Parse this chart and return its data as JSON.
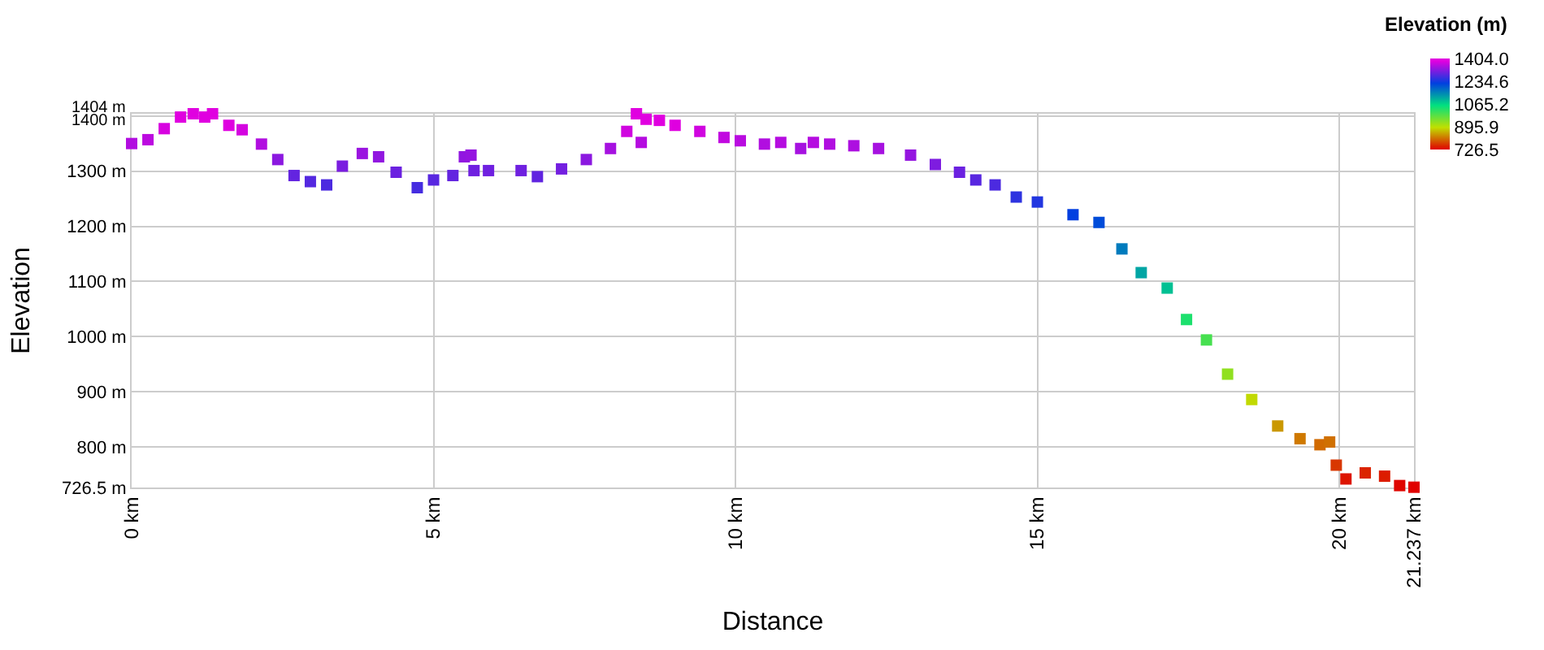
{
  "chart_data": {
    "type": "scatter",
    "xlabel": "Distance",
    "ylabel": "Elevation",
    "clabel": "Elevation (m)",
    "x": [
      0,
      0.27,
      0.54,
      0.81,
      1.02,
      1.21,
      1.34,
      1.61,
      1.83,
      2.15,
      2.42,
      2.69,
      2.96,
      3.23,
      3.49,
      3.82,
      4.09,
      4.38,
      4.73,
      5.0,
      5.32,
      5.51,
      5.62,
      5.67,
      5.91,
      6.45,
      6.72,
      7.12,
      7.53,
      7.93,
      8.2,
      8.36,
      8.44,
      8.52,
      8.74,
      9.0,
      9.41,
      9.81,
      10.08,
      10.48,
      10.75,
      11.08,
      11.29,
      11.56,
      11.96,
      12.37,
      12.9,
      13.31,
      13.71,
      13.98,
      14.3,
      14.65,
      15.0,
      15.59,
      16.02,
      16.4,
      16.72,
      17.15,
      17.47,
      17.8,
      18.15,
      18.55,
      18.98,
      19.35,
      19.68,
      19.84,
      19.95,
      20.11,
      20.43,
      20.75,
      21.0,
      21.237
    ],
    "values": [
      1350,
      1357,
      1377,
      1398,
      1404,
      1398,
      1404,
      1383,
      1375,
      1349,
      1321,
      1292,
      1281,
      1275,
      1309,
      1332,
      1326,
      1298,
      1270,
      1284,
      1292,
      1326,
      1329,
      1301,
      1301,
      1301,
      1290,
      1304,
      1321,
      1341,
      1372,
      1404,
      1352,
      1394,
      1392,
      1383,
      1372,
      1361,
      1355,
      1349,
      1352,
      1341,
      1352,
      1349,
      1346,
      1341,
      1329,
      1312,
      1298,
      1284,
      1275,
      1253,
      1244,
      1221,
      1207,
      1159,
      1116,
      1088,
      1031,
      994,
      932,
      886,
      838,
      815,
      804,
      809,
      767,
      742,
      753,
      747,
      730,
      727
    ],
    "cvalues": [
      1350,
      1357,
      1377,
      1398,
      1404,
      1398,
      1404,
      1383,
      1375,
      1349,
      1321,
      1292,
      1281,
      1275,
      1309,
      1332,
      1326,
      1298,
      1270,
      1284,
      1292,
      1326,
      1329,
      1301,
      1301,
      1301,
      1290,
      1304,
      1321,
      1341,
      1372,
      1404,
      1352,
      1394,
      1392,
      1383,
      1372,
      1361,
      1355,
      1349,
      1352,
      1341,
      1352,
      1349,
      1346,
      1341,
      1329,
      1312,
      1298,
      1284,
      1275,
      1253,
      1244,
      1221,
      1207,
      1159,
      1116,
      1088,
      1031,
      994,
      932,
      886,
      838,
      815,
      804,
      809,
      767,
      742,
      753,
      747,
      730,
      727
    ],
    "clim": [
      726.5,
      1404
    ],
    "cticks": [
      {
        "value": 726.5,
        "label": "726.5"
      },
      {
        "value": 895.9,
        "label": "895.9"
      },
      {
        "value": 1065.2,
        "label": "1065.2"
      },
      {
        "value": 1234.6,
        "label": "1234.6"
      },
      {
        "value": 1404,
        "label": "1404.0"
      }
    ],
    "xlim": [
      0,
      21.237
    ],
    "xticks": [
      {
        "value": 0,
        "label": "0 km"
      },
      {
        "value": 5,
        "label": "5 km"
      },
      {
        "value": 10,
        "label": "10 km"
      },
      {
        "value": 15,
        "label": "15 km"
      },
      {
        "value": 20,
        "label": "20 km"
      },
      {
        "value": 21.237,
        "label": "21.237 km"
      }
    ],
    "ylim": [
      726.5,
      1404
    ],
    "yticks": [
      {
        "value": 726.5,
        "label": "726.5 m"
      },
      {
        "value": 800,
        "label": "800 m"
      },
      {
        "value": 900,
        "label": "900 m"
      },
      {
        "value": 1000,
        "label": "1000 m"
      },
      {
        "value": 1100,
        "label": "1100 m"
      },
      {
        "value": 1200,
        "label": "1200 m"
      },
      {
        "value": 1300,
        "label": "1300 m"
      },
      {
        "value": 1400,
        "label": "1400 m"
      },
      {
        "value": 1404,
        "label": "1404 m"
      }
    ],
    "grid": true,
    "marker": "square"
  }
}
